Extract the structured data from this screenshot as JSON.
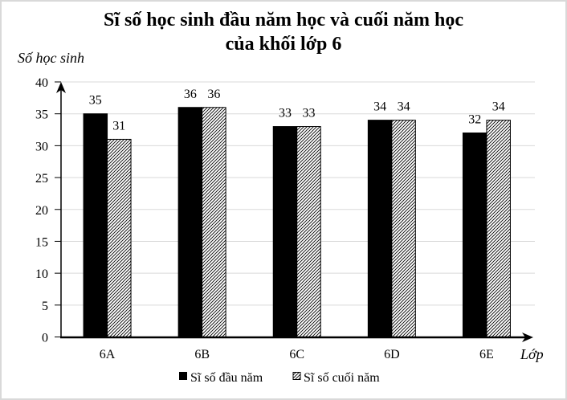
{
  "title": {
    "line1": "Sĩ số học sinh đầu năm học và cuối năm học",
    "line2": "của khối lớp 6"
  },
  "axes": {
    "y_title": "Số học sinh",
    "x_title": "Lớp"
  },
  "legend": {
    "items": [
      {
        "label": "Sĩ số đầu năm",
        "fill": "solid"
      },
      {
        "label": "Sĩ số cuối năm",
        "fill": "hatched"
      }
    ]
  },
  "colors": {
    "bar_solid": "#000000",
    "bar_hatch_line": "#000000",
    "bar_hatch_bg": "#ffffff",
    "gridline": "#d9d9d9",
    "axis": "#000000",
    "frame_border": "#d9d9d9"
  },
  "chart_data": {
    "type": "bar",
    "title": "Sĩ số học sinh đầu năm học và cuối năm học của khối lớp 6",
    "xlabel": "Lớp",
    "ylabel": "Số học sinh",
    "categories": [
      "6A",
      "6B",
      "6C",
      "6D",
      "6E"
    ],
    "series": [
      {
        "name": "Sĩ số đầu năm",
        "values": [
          35,
          36,
          33,
          34,
          32
        ],
        "fill": "solid"
      },
      {
        "name": "Sĩ số cuối năm",
        "values": [
          31,
          36,
          33,
          34,
          34
        ],
        "fill": "hatched"
      }
    ],
    "ylim": [
      0,
      40
    ],
    "yticks": [
      0,
      5,
      10,
      15,
      20,
      25,
      30,
      35,
      40
    ],
    "grid": true,
    "data_labels": true,
    "legend_position": "bottom"
  }
}
